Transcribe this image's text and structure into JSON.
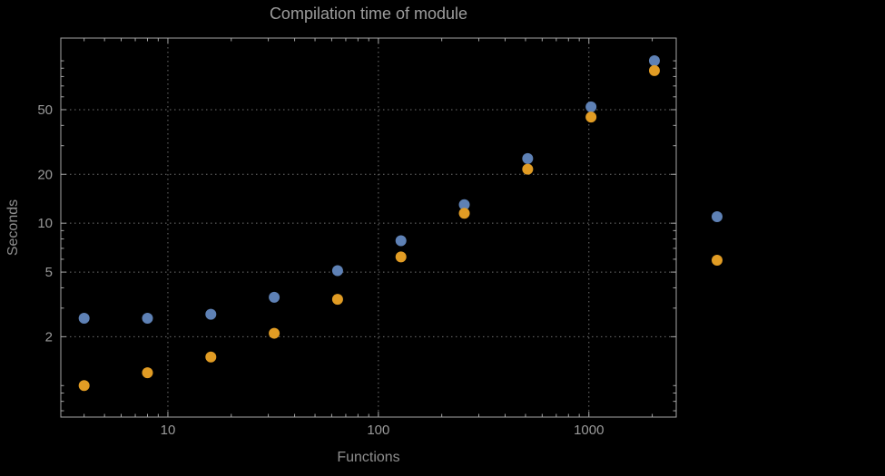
{
  "chart_data": {
    "type": "scatter",
    "title": "Compilation time of module",
    "xlabel": "Functions",
    "ylabel": "Seconds",
    "xscale": "log",
    "yscale": "log",
    "xlim": [
      3.1,
      2600
    ],
    "ylim": [
      0.64,
      138
    ],
    "x_ticks": [
      10,
      100,
      1000
    ],
    "y_ticks": [
      2,
      5,
      10,
      20,
      50
    ],
    "grid": "dotted gridlines at major ticks",
    "x": [
      4,
      8,
      16,
      32,
      64,
      128,
      256,
      512,
      1024,
      2048
    ],
    "series": [
      {
        "name": "series-blue",
        "color": "#5e81b5",
        "values": [
          2.6,
          2.6,
          2.75,
          3.5,
          5.1,
          7.8,
          13,
          25,
          52,
          100
        ]
      },
      {
        "name": "series-orange",
        "color": "#e19c24",
        "values": [
          1.0,
          1.2,
          1.5,
          2.1,
          3.4,
          6.2,
          11.5,
          21.5,
          45,
          87
        ]
      }
    ],
    "legend": {
      "position": "right-outside",
      "labels_visible": false
    }
  },
  "colors": {
    "background": "#000000",
    "frame": "#a6a6a6",
    "grid": "#6f6f6f",
    "tick_text": "#9a9a9a",
    "title_text": "#9d9d9d",
    "axis_label_text": "#8f8f8f"
  }
}
